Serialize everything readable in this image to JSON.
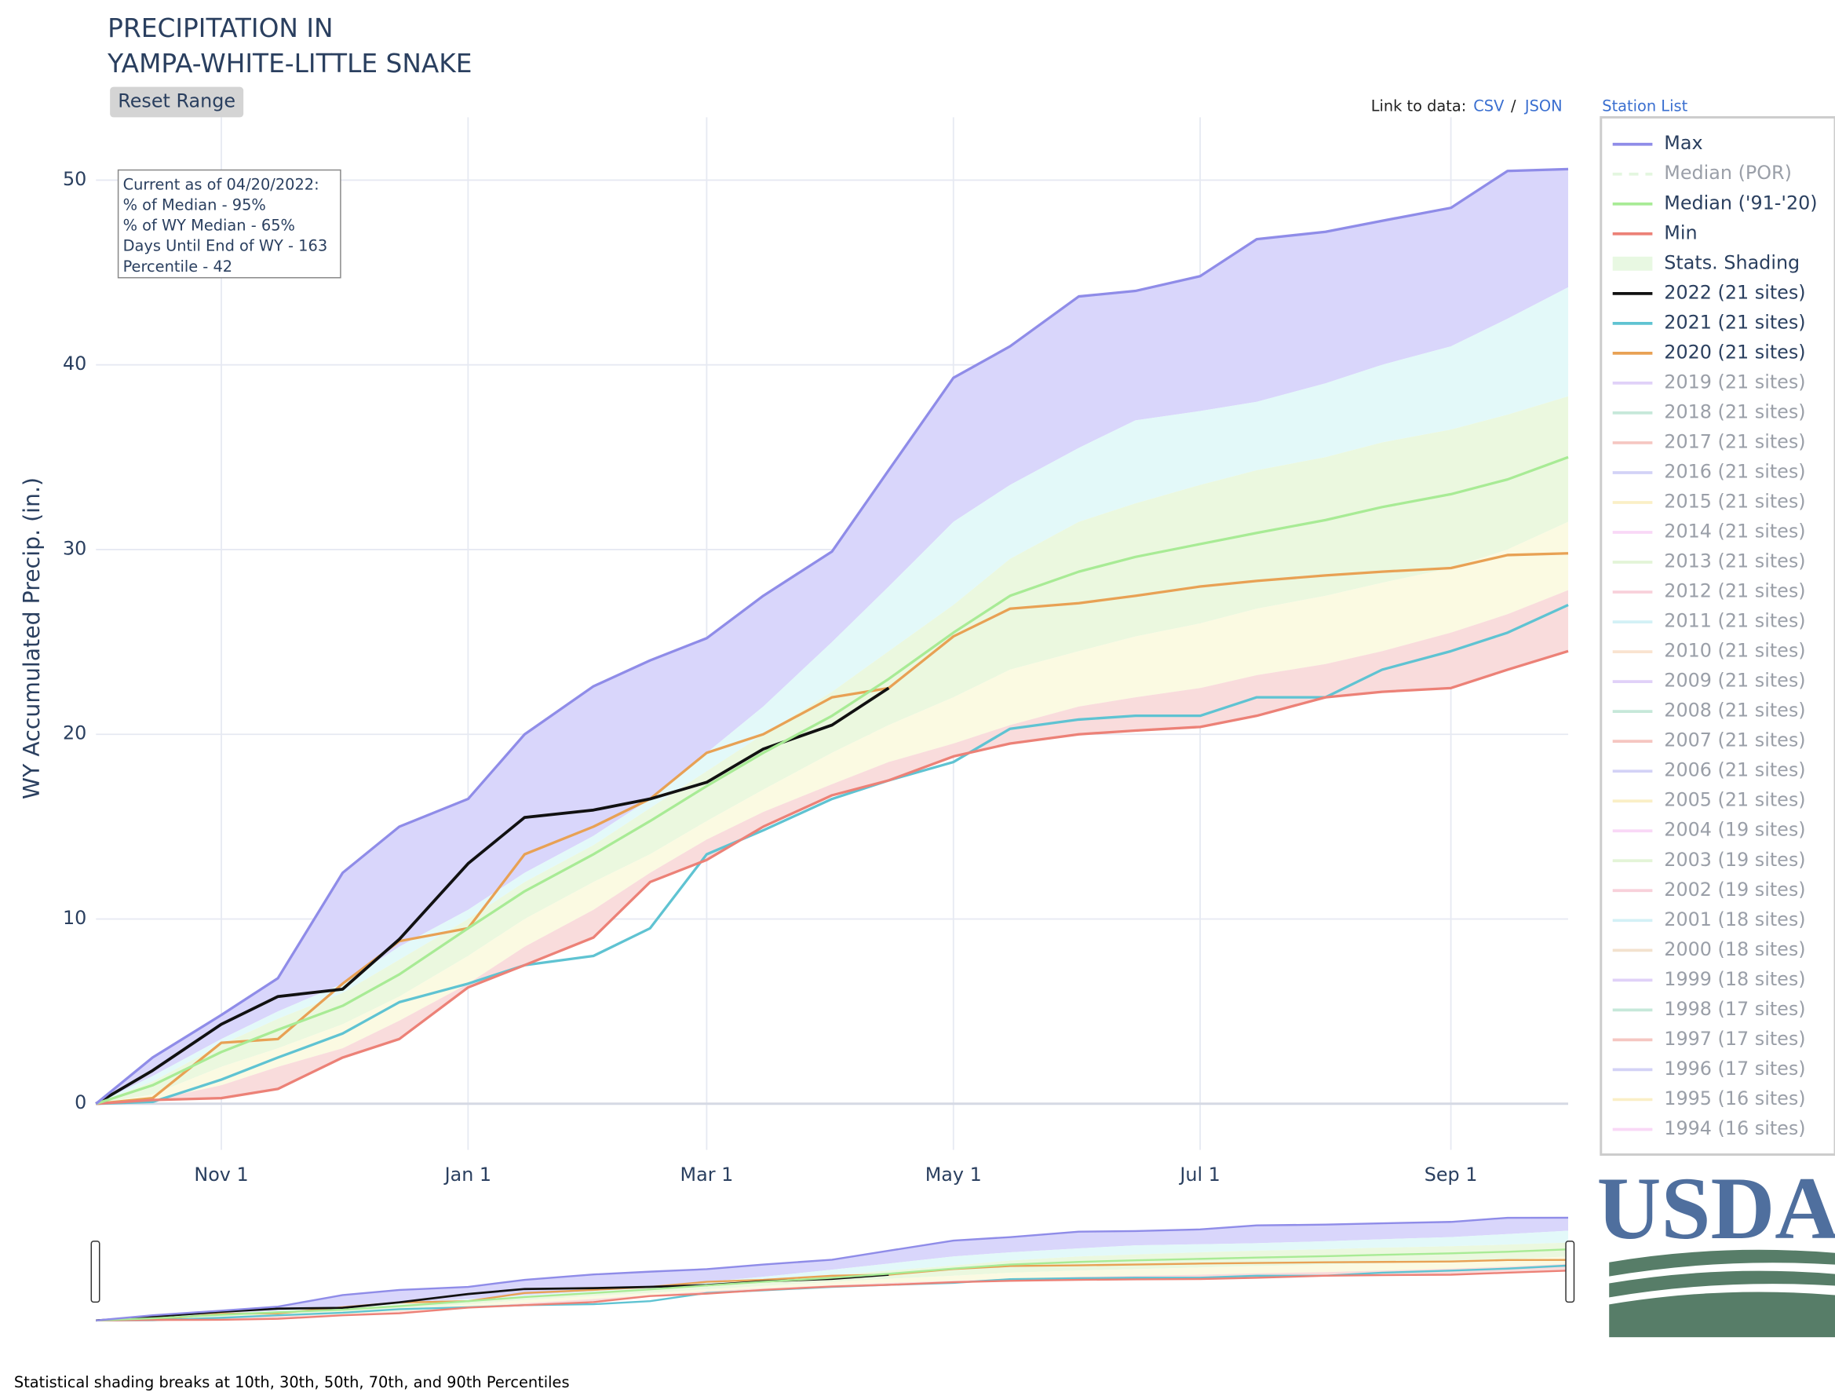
{
  "chart_data": {
    "type": "line",
    "title": [
      "PRECIPITATION IN",
      "YAMPA-WHITE-LITTLE SNAKE"
    ],
    "reset_button": "Reset Range",
    "links": {
      "prefix": "Link to data:",
      "csv": "CSV",
      "separator": "/",
      "json": "JSON",
      "stations": "Station List"
    },
    "info": [
      "Current as of 04/20/2022:",
      "% of Median - 95%",
      "% of WY Median - 65%",
      "Days Until End of WY - 163",
      "Percentile - 42"
    ],
    "y_label": "WY Accumulated Precip. (in.)",
    "footnote": "Statistical shading breaks at 10th, 30th, 50th, 70th, and 90th Percentiles",
    "logo": "USDA",
    "x": [
      "Oct 1",
      "Oct 15",
      "Nov 1",
      "Nov 15",
      "Dec 1",
      "Dec 15",
      "Jan 1",
      "Jan 15",
      "Feb 1",
      "Feb 15",
      "Mar 1",
      "Mar 15",
      "Apr 1",
      "Apr 15",
      "May 1",
      "May 15",
      "Jun 1",
      "Jun 15",
      "Jul 1",
      "Jul 15",
      "Aug 1",
      "Aug 15",
      "Sep 1",
      "Sep 15",
      "Sep 30"
    ],
    "xlim": [
      "Oct 1",
      "Sep 30"
    ],
    "xticks": [
      "Nov 1",
      "Jan 1",
      "Mar 1",
      "May 1",
      "Jul 1",
      "Sep 1"
    ],
    "ylim": [
      -2.5,
      53.4
    ],
    "yticks": [
      0,
      10,
      20,
      30,
      40,
      50
    ],
    "grid": true,
    "legend": "right",
    "series": [
      {
        "name": "Max",
        "color": "#8f8ce8",
        "values": [
          0,
          2.5,
          4.8,
          6.8,
          12.5,
          15.0,
          16.5,
          20.0,
          22.6,
          24.0,
          25.2,
          27.5,
          29.9,
          34.3,
          39.3,
          41.0,
          43.7,
          44.0,
          44.8,
          46.8,
          47.2,
          47.8,
          48.5,
          50.5,
          50.6
        ]
      },
      {
        "name": "Median (POR)",
        "color": "#c9efc0",
        "dash": true,
        "visible": false
      },
      {
        "name": "Median ('91-'20)",
        "color": "#a8eb95",
        "values": [
          0,
          1,
          2.8,
          4,
          5.3,
          7,
          9.5,
          11.5,
          13.5,
          15.3,
          17.2,
          19,
          21,
          23,
          25.5,
          27.5,
          28.8,
          29.6,
          30.3,
          30.9,
          31.6,
          32.3,
          33,
          33.8,
          35
        ]
      },
      {
        "name": "Min",
        "color": "#ec8177",
        "values": [
          0,
          0.2,
          0.3,
          0.8,
          2.5,
          3.5,
          6.3,
          7.5,
          9,
          12,
          13.2,
          15,
          16.7,
          17.5,
          18.8,
          19.5,
          20,
          20.2,
          20.4,
          21,
          22,
          22.3,
          22.5,
          23.5,
          24.5
        ]
      },
      {
        "name": "Stats. Shading",
        "color": "#e8f8e2",
        "colors": [
          "#d9d6fb",
          "#e3f9f9",
          "#ebf8df",
          "#fbfae2",
          "#f9dcdc"
        ],
        "bounds": [
          [
            0,
            1.5,
            3.5,
            5,
            6.5,
            8.5,
            10.5,
            12.5,
            14.5,
            16.5,
            19,
            21.5,
            25,
            28,
            31.5,
            33.5,
            35.5,
            37,
            37.5,
            38,
            39,
            40,
            41,
            42.5,
            44.2
          ],
          [
            0,
            1.2,
            3.2,
            4.6,
            6,
            7.8,
            10,
            12,
            14,
            16,
            18,
            20,
            22.3,
            24.5,
            27,
            29.5,
            31.5,
            32.5,
            33.5,
            34.3,
            35,
            35.8,
            36.5,
            37.3,
            38.3
          ],
          [
            0,
            0.5,
            2,
            3,
            4.3,
            5.8,
            8,
            10,
            12,
            13.5,
            15.3,
            17,
            19,
            20.5,
            22,
            23.5,
            24.5,
            25.3,
            26,
            26.8,
            27.5,
            28.2,
            29,
            30,
            31.5
          ],
          [
            0,
            0.2,
            1,
            2,
            3,
            4.5,
            6.5,
            8.5,
            10.5,
            12.5,
            14.3,
            15.8,
            17.3,
            18.5,
            19.5,
            20.5,
            21.5,
            22,
            22.5,
            23.2,
            23.8,
            24.5,
            25.5,
            26.5,
            27.8
          ]
        ]
      },
      {
        "name": "2022 (21 sites)",
        "color": "#111111",
        "values": [
          0,
          1.8,
          4.3,
          5.8,
          6.2,
          8.9,
          13,
          15.5,
          15.9,
          16.5,
          17.4,
          19.2,
          20.5,
          22.5,
          null,
          null,
          null,
          null,
          null,
          null,
          null,
          null,
          null,
          null,
          null
        ]
      },
      {
        "name": "2021 (21 sites)",
        "color": "#5fc3d2",
        "values": [
          0,
          0.1,
          1.3,
          2.5,
          3.8,
          5.5,
          6.5,
          7.5,
          8,
          9.5,
          13.5,
          14.8,
          16.5,
          17.5,
          18.5,
          20.3,
          20.8,
          21,
          21,
          22,
          22,
          23.5,
          24.5,
          25.5,
          27
        ]
      },
      {
        "name": "2020 (21 sites)",
        "color": "#e8a154",
        "values": [
          0,
          0.3,
          3.3,
          3.5,
          6.5,
          8.8,
          9.5,
          13.5,
          15,
          16.5,
          19,
          20,
          22,
          22.5,
          25.3,
          26.8,
          27.1,
          27.5,
          28,
          28.3,
          28.6,
          28.8,
          29,
          29.7,
          29.8
        ]
      },
      {
        "name": "2019 (21 sites)",
        "color": "#c3a4f2",
        "visible": false
      },
      {
        "name": "2018 (21 sites)",
        "color": "#8fd3b5",
        "visible": false
      },
      {
        "name": "2017 (21 sites)",
        "color": "#ec8f84",
        "visible": false
      },
      {
        "name": "2016 (21 sites)",
        "color": "#a9a6ee",
        "visible": false
      },
      {
        "name": "2015 (21 sites)",
        "color": "#f6e08f",
        "visible": false
      },
      {
        "name": "2014 (21 sites)",
        "color": "#f4b3ee",
        "visible": false
      },
      {
        "name": "2013 (21 sites)",
        "color": "#c8ebb0",
        "visible": false
      },
      {
        "name": "2012 (21 sites)",
        "color": "#f2a3b6",
        "visible": false
      },
      {
        "name": "2011 (21 sites)",
        "color": "#a9e4ef",
        "visible": false
      },
      {
        "name": "2010 (21 sites)",
        "color": "#f5c9a3",
        "visible": false
      },
      {
        "name": "2009 (21 sites)",
        "color": "#c3a4f2",
        "visible": false
      },
      {
        "name": "2008 (21 sites)",
        "color": "#8fd3b5",
        "visible": false
      },
      {
        "name": "2007 (21 sites)",
        "color": "#ec8f84",
        "visible": false
      },
      {
        "name": "2006 (21 sites)",
        "color": "#a9a6ee",
        "visible": false
      },
      {
        "name": "2005 (21 sites)",
        "color": "#f6e08f",
        "visible": false
      },
      {
        "name": "2004 (19 sites)",
        "color": "#f4b3ee",
        "visible": false
      },
      {
        "name": "2003 (19 sites)",
        "color": "#c8ebb0",
        "visible": false
      },
      {
        "name": "2002 (19 sites)",
        "color": "#f2a3b6",
        "visible": false
      },
      {
        "name": "2001 (18 sites)",
        "color": "#a9e4ef",
        "visible": false
      },
      {
        "name": "2000 (18 sites)",
        "color": "#e8c79f",
        "visible": false
      },
      {
        "name": "1999 (18 sites)",
        "color": "#c3a4f2",
        "visible": false
      },
      {
        "name": "1998 (17 sites)",
        "color": "#8fd3b5",
        "visible": false
      },
      {
        "name": "1997 (17 sites)",
        "color": "#ec8f84",
        "visible": false
      },
      {
        "name": "1996 (17 sites)",
        "color": "#a9a6ee",
        "visible": false
      },
      {
        "name": "1995 (16 sites)",
        "color": "#f6e08f",
        "visible": false
      },
      {
        "name": "1994 (16 sites)",
        "color": "#f4b3ee",
        "visible": false
      }
    ]
  }
}
